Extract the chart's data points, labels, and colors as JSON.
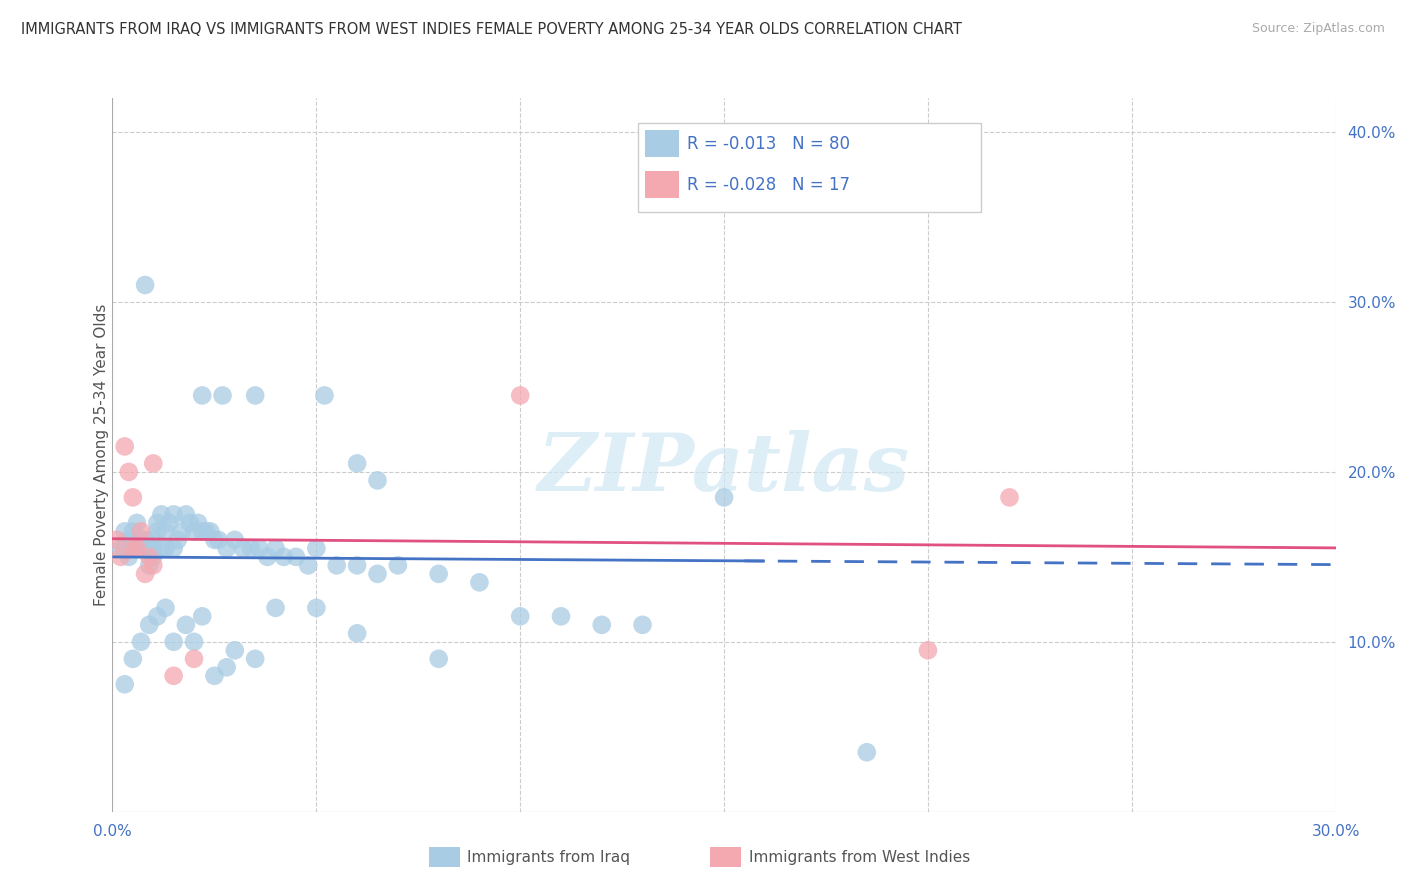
{
  "title": "IMMIGRANTS FROM IRAQ VS IMMIGRANTS FROM WEST INDIES FEMALE POVERTY AMONG 25-34 YEAR OLDS CORRELATION CHART",
  "source": "Source: ZipAtlas.com",
  "xlabel_label": "Immigrants from Iraq",
  "xlabel2_label": "Immigrants from West Indies",
  "ylabel": "Female Poverty Among 25-34 Year Olds",
  "xlim": [
    0.0,
    0.3
  ],
  "ylim": [
    0.0,
    0.42
  ],
  "r_iraq": -0.013,
  "n_iraq": 80,
  "r_wi": -0.028,
  "n_wi": 17,
  "color_iraq": "#a8cce4",
  "color_wi": "#f4a8b0",
  "color_iraq_line": "#4472c4",
  "color_wi_line": "#e05080",
  "watermark": "ZIPatlas",
  "iraq_x": [
    0.002,
    0.003,
    0.003,
    0.004,
    0.004,
    0.005,
    0.005,
    0.005,
    0.006,
    0.006,
    0.007,
    0.007,
    0.008,
    0.008,
    0.009,
    0.009,
    0.01,
    0.01,
    0.01,
    0.011,
    0.011,
    0.012,
    0.012,
    0.013,
    0.013,
    0.014,
    0.015,
    0.015,
    0.016,
    0.017,
    0.018,
    0.019,
    0.02,
    0.021,
    0.022,
    0.023,
    0.024,
    0.025,
    0.026,
    0.028,
    0.03,
    0.032,
    0.034,
    0.036,
    0.038,
    0.04,
    0.042,
    0.045,
    0.048,
    0.05,
    0.055,
    0.06,
    0.065,
    0.07,
    0.08,
    0.09,
    0.1,
    0.11,
    0.12,
    0.13,
    0.003,
    0.005,
    0.007,
    0.009,
    0.011,
    0.013,
    0.015,
    0.018,
    0.02,
    0.022,
    0.025,
    0.028,
    0.03,
    0.035,
    0.04,
    0.05,
    0.06,
    0.08,
    0.15,
    0.185
  ],
  "iraq_y": [
    0.155,
    0.165,
    0.155,
    0.16,
    0.15,
    0.155,
    0.16,
    0.165,
    0.155,
    0.17,
    0.16,
    0.155,
    0.155,
    0.16,
    0.145,
    0.155,
    0.155,
    0.15,
    0.16,
    0.165,
    0.17,
    0.175,
    0.155,
    0.165,
    0.155,
    0.17,
    0.175,
    0.155,
    0.16,
    0.165,
    0.175,
    0.17,
    0.165,
    0.17,
    0.165,
    0.165,
    0.165,
    0.16,
    0.16,
    0.155,
    0.16,
    0.155,
    0.155,
    0.155,
    0.15,
    0.155,
    0.15,
    0.15,
    0.145,
    0.155,
    0.145,
    0.145,
    0.14,
    0.145,
    0.14,
    0.135,
    0.115,
    0.115,
    0.11,
    0.11,
    0.075,
    0.09,
    0.1,
    0.11,
    0.115,
    0.12,
    0.1,
    0.11,
    0.1,
    0.115,
    0.08,
    0.085,
    0.095,
    0.09,
    0.12,
    0.12,
    0.105,
    0.09,
    0.185,
    0.035
  ],
  "iraq_outliers_x": [
    0.008,
    0.022,
    0.027,
    0.035,
    0.052,
    0.06,
    0.065
  ],
  "iraq_outliers_y": [
    0.31,
    0.245,
    0.245,
    0.245,
    0.245,
    0.205,
    0.195
  ],
  "wi_x": [
    0.001,
    0.002,
    0.003,
    0.004,
    0.005,
    0.005,
    0.006,
    0.007,
    0.008,
    0.009,
    0.01,
    0.01,
    0.015,
    0.02,
    0.1,
    0.2,
    0.22
  ],
  "wi_y": [
    0.16,
    0.15,
    0.215,
    0.2,
    0.155,
    0.185,
    0.155,
    0.165,
    0.14,
    0.15,
    0.145,
    0.205,
    0.08,
    0.09,
    0.245,
    0.095,
    0.185
  ]
}
